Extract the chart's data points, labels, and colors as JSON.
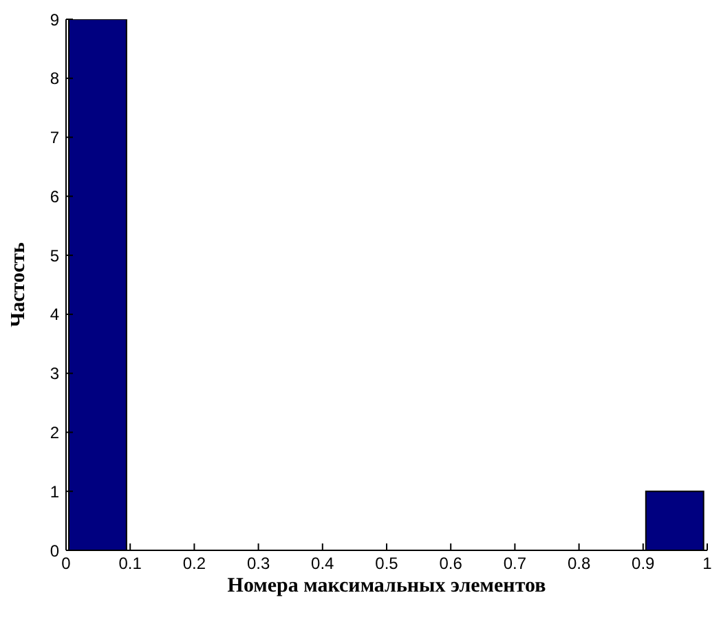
{
  "chart_data": {
    "type": "histogram",
    "xlabel": "Номера максимальных элементов",
    "ylabel": "Частость",
    "bins": [
      0,
      0.1,
      0.2,
      0.3,
      0.4,
      0.5,
      0.6,
      0.7,
      0.8,
      0.9,
      1
    ],
    "values": [
      9,
      0,
      0,
      0,
      0,
      0,
      0,
      0,
      0,
      1
    ],
    "color": "#000080",
    "xlim": [
      0,
      1
    ],
    "xticks": [
      0,
      0.1,
      0.2,
      0.3,
      0.4,
      0.5,
      0.6,
      0.7,
      0.8,
      0.9,
      1
    ],
    "ylim": [
      0,
      9
    ],
    "yticks": [
      0,
      1,
      2,
      3,
      4,
      5,
      6,
      7,
      8,
      9
    ],
    "grid": false
  }
}
